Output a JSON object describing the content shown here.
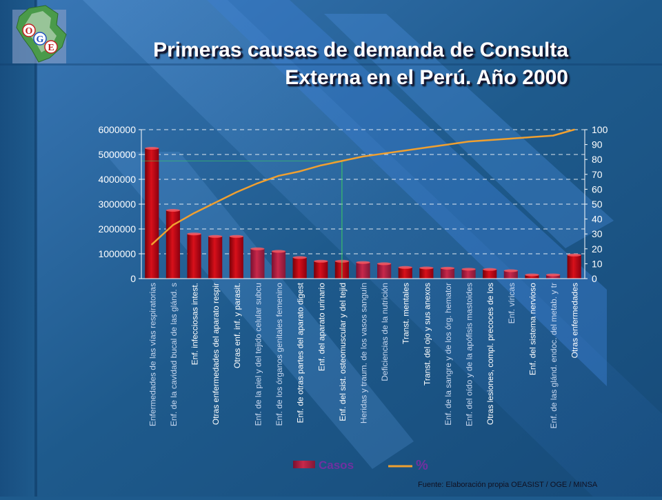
{
  "title": {
    "line1": "Primeras causas de demanda de Consulta",
    "line2": "Externa en el Perú. Año 2000"
  },
  "logo": {
    "letters": [
      "O",
      "G",
      "E"
    ]
  },
  "source": "Fuente: Elaboración propia OEASIST / OGE / MINSA",
  "colors": {
    "background": "#1e5a8c",
    "bar_highlight": "#d8101a",
    "bar_other": "#c8284a",
    "line": "#f0a030",
    "axis_text": "#ffffff",
    "vertical_marker": "#3cd060",
    "legend_text": "#7030a0"
  },
  "chart_data": {
    "type": "bar",
    "title": "",
    "xlabel": "",
    "ylabel": "",
    "ylim": [
      0,
      6000000
    ],
    "y2lim": [
      0,
      100
    ],
    "y_ticks": [
      "0",
      "1000000",
      "2000000",
      "3000000",
      "4000000",
      "5000000",
      "6000000"
    ],
    "y2_ticks": [
      "0",
      "10",
      "20",
      "30",
      "40",
      "50",
      "60",
      "70",
      "80",
      "90",
      "100"
    ],
    "grid": "dashed horizontal",
    "legend_position": "bottom",
    "categories": [
      "Enfermedades de las vías respiratorias",
      "Enf. de la cavidad bucal de las glánd. s",
      "Enf. infecciosas intest.",
      "Otras enfermedades del aparato respir",
      "Otras enf. inf. y parasit.",
      "Enf. de la piel y del tejido celular subcu",
      "Enf. de los órganos genitales femenino",
      "Enf. de otras partes del aparato digest",
      "Enf. del aparato urinario",
      "Enf. del sist. osteomuscular y del tejid",
      "Heridas y traum. de los vasos sanguín",
      "Deficiencias de la nutrición",
      "Transt. mentales",
      "Transt. del ojo y sus anexos",
      "Enf. de la sangre y de los órg. hemator",
      "Enf. del oído y de la apófisis mastoides",
      "Otras lesiones, compl. precoces de los",
      "Enf. víricas",
      "Enf. del sistema nervioso",
      "Enf. de las glánd. endoc. del metab. y tr",
      "Otras enfermedades"
    ],
    "series": [
      {
        "name": "Casos",
        "type": "bar",
        "values": [
          5250000,
          2750000,
          1800000,
          1700000,
          1700000,
          1200000,
          1100000,
          850000,
          700000,
          700000,
          650000,
          600000,
          450000,
          430000,
          420000,
          380000,
          370000,
          320000,
          150000,
          150000,
          950000
        ]
      },
      {
        "name": "%",
        "type": "line",
        "axis": "right",
        "values": [
          23,
          36,
          44,
          51,
          58,
          64,
          69,
          72,
          76,
          79,
          82,
          84,
          86,
          88,
          90,
          92,
          93,
          94,
          95,
          96,
          100
        ]
      }
    ],
    "highlight_label_indices": [
      2,
      3,
      4,
      7,
      8,
      9,
      12,
      13,
      16,
      18,
      20
    ],
    "marker_category_index": 9
  }
}
